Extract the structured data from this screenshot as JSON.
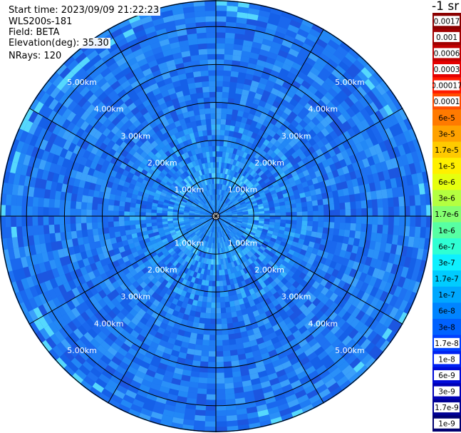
{
  "header": {
    "start_time": "Start time: 2023/09/09 21:22:23",
    "instrument": "WLS200s-181",
    "field": "Field: BETA",
    "elevation": "Elevation(deg): 35.30",
    "nrays": "NRays: 120"
  },
  "ppi": {
    "nrays": 120,
    "range_rings_km": [
      1,
      2,
      3,
      4,
      5
    ],
    "ring_labels": [
      "1.00km",
      "2.00km",
      "3.00km",
      "4.00km",
      "5.00km"
    ],
    "max_range_km": 5.7,
    "spoke_count": 12
  },
  "colorbar": {
    "unit_label": "-1 sr",
    "labels": [
      "0.0017",
      "0.001",
      "0.0006",
      "0.0003",
      "0.00017",
      "0.0001",
      "6e-5",
      "3e-5",
      "1.7e-5",
      "1e-5",
      "6e-6",
      "3e-6",
      "1.7e-6",
      "1e-6",
      "6e-7",
      "3e-7",
      "1.7e-7",
      "1e-7",
      "6e-8",
      "3e-8",
      "1.7e-8",
      "1e-8",
      "6e-9",
      "3e-9",
      "1.7e-9",
      "1e-9"
    ],
    "colors": [
      "#8b0000",
      "#a00000",
      "#c00000",
      "#e40000",
      "#ff1a00",
      "#ff4d00",
      "#ff7a00",
      "#ffa200",
      "#ffca00",
      "#fff000",
      "#e6ff0f",
      "#b4ff40",
      "#84ff70",
      "#57ffa3",
      "#2fffd3",
      "#0ef0ff",
      "#00ccff",
      "#00a8ff",
      "#0084ff",
      "#0062ff",
      "#0040ff",
      "#0022f2",
      "#000ad8",
      "#0000b6",
      "#000094",
      "#000070"
    ]
  }
}
